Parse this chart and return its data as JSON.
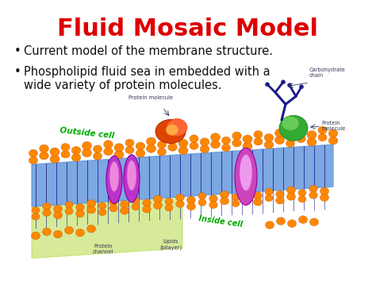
{
  "title": "Fluid Mosaic Model",
  "title_color": "#dd0000",
  "title_fontsize": 22,
  "title_fontweight": "bold",
  "bullet1": "Current model of the membrane structure.",
  "bullet2": "Phospholipid fluid sea in embedded with a\nwide variety of protein molecules.",
  "bullet_fontsize": 10.5,
  "bullet_color": "#111111",
  "background_color": "#ffffff",
  "outside_cell_label": "Outside cell",
  "inside_cell_label": "Inside cell",
  "protein_molecule_label1": "Protein molecule",
  "protein_molecule_label2": "Protein\nmolecule",
  "carbohydrate_label": "Carbohydrate\nchain",
  "protein_channel_label": "Protein\nchannel",
  "lipid_bilayer_label": "Lipids\n(bilayer)",
  "label_fontsize": 4.8,
  "label_color": "#333355",
  "orange_color": "#FF8800",
  "purple_color": "#cc44cc",
  "pink_color": "#ee88cc",
  "green_color": "#44bb44",
  "red_orange_color": "#ee4400",
  "blue_color": "#5599cc",
  "navy_color": "#1a1a88",
  "yellow_green_color": "#bbcc44"
}
